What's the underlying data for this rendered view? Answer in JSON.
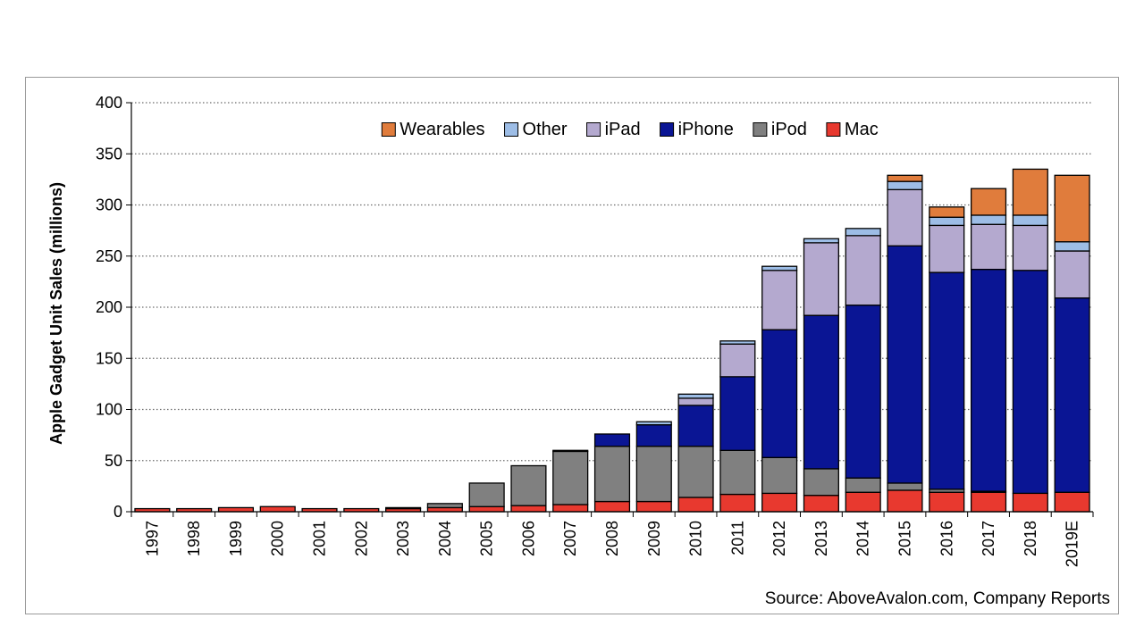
{
  "chart_data": {
    "type": "bar",
    "stacked": true,
    "title": "",
    "xlabel": "",
    "ylabel": "Apple Gadget Unit Sales (millions)",
    "ylim": [
      0,
      400
    ],
    "yticks": [
      0,
      50,
      100,
      150,
      200,
      250,
      300,
      350,
      400
    ],
    "grid": true,
    "legend_position": "top-center",
    "categories": [
      "1997",
      "1998",
      "1999",
      "2000",
      "2001",
      "2002",
      "2003",
      "2004",
      "2005",
      "2006",
      "2007",
      "2008",
      "2009",
      "2010",
      "2011",
      "2012",
      "2013",
      "2014",
      "2015",
      "2016",
      "2017",
      "2018",
      "2019E"
    ],
    "series": [
      {
        "name": "Mac",
        "color": "#e8392f",
        "values": [
          3,
          3,
          4,
          5,
          3,
          3,
          3,
          4,
          5,
          6,
          7,
          10,
          10,
          14,
          17,
          18,
          16,
          19,
          21,
          19,
          19,
          18,
          19
        ]
      },
      {
        "name": "iPod",
        "color": "#808080",
        "values": [
          0,
          0,
          0,
          0,
          0,
          0,
          1,
          4,
          23,
          39,
          52,
          54,
          54,
          50,
          43,
          35,
          26,
          14,
          7,
          3,
          1,
          0,
          0
        ]
      },
      {
        "name": "iPhone",
        "color": "#0a1594",
        "values": [
          0,
          0,
          0,
          0,
          0,
          0,
          0,
          0,
          0,
          0,
          1,
          12,
          21,
          40,
          72,
          125,
          150,
          169,
          232,
          212,
          217,
          218,
          190
        ]
      },
      {
        "name": "iPad",
        "color": "#b4a9cf",
        "values": [
          0,
          0,
          0,
          0,
          0,
          0,
          0,
          0,
          0,
          0,
          0,
          0,
          0,
          7,
          32,
          58,
          71,
          68,
          55,
          46,
          44,
          44,
          46
        ]
      },
      {
        "name": "Other",
        "color": "#9dbde6",
        "values": [
          0,
          0,
          0,
          0,
          0,
          0,
          0,
          0,
          0,
          0,
          0,
          0,
          3,
          4,
          3,
          4,
          4,
          7,
          8,
          8,
          9,
          10,
          9
        ]
      },
      {
        "name": "Wearables",
        "color": "#e07c3c",
        "values": [
          0,
          0,
          0,
          0,
          0,
          0,
          0,
          0,
          0,
          0,
          0,
          0,
          0,
          0,
          0,
          0,
          0,
          0,
          6,
          10,
          26,
          45,
          65
        ]
      }
    ],
    "legend_order": [
      "Wearables",
      "Other",
      "iPad",
      "iPhone",
      "iPod",
      "Mac"
    ]
  },
  "source_text": "Source: AboveAvalon.com, Company Reports"
}
